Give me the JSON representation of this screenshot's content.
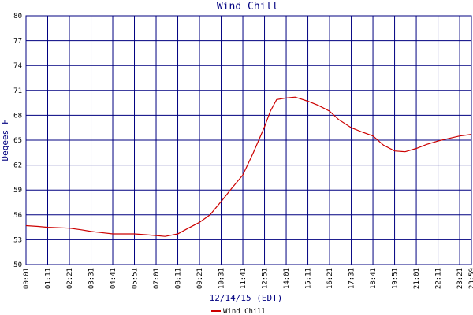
{
  "chart_data": {
    "type": "line",
    "title": "Wind Chill",
    "xlabel": "12/14/15 (EDT)",
    "ylabel": "Degees F",
    "x": [
      "00:01",
      "00:40",
      "01:11",
      "02:21",
      "03:00",
      "03:31",
      "04:41",
      "05:51",
      "06:30",
      "07:01",
      "07:30",
      "08:11",
      "08:45",
      "09:21",
      "09:55",
      "10:31",
      "11:05",
      "11:41",
      "12:15",
      "12:51",
      "13:10",
      "13:30",
      "14:01",
      "14:30",
      "15:11",
      "15:45",
      "16:21",
      "16:50",
      "17:31",
      "18:05",
      "18:41",
      "19:15",
      "19:51",
      "20:25",
      "21:01",
      "21:35",
      "22:11",
      "22:45",
      "23:21",
      "23:59"
    ],
    "series": [
      {
        "name": "Wind Chill",
        "color": "#cc0000",
        "values": [
          54.7,
          54.6,
          54.5,
          54.4,
          54.2,
          54.0,
          53.7,
          53.7,
          53.6,
          53.5,
          53.4,
          53.7,
          54.4,
          55.1,
          56.0,
          57.6,
          59.2,
          60.8,
          63.5,
          66.6,
          68.5,
          69.9,
          70.1,
          70.2,
          69.7,
          69.2,
          68.5,
          67.5,
          66.5,
          66.0,
          65.5,
          64.4,
          63.7,
          63.6,
          64.0,
          64.5,
          64.9,
          65.2,
          65.5,
          65.7
        ]
      }
    ],
    "xlim": [
      "00:01",
      "23:59"
    ],
    "xticks": [
      "00:01",
      "01:11",
      "02:21",
      "03:31",
      "04:41",
      "05:51",
      "07:01",
      "08:11",
      "09:21",
      "10:31",
      "11:41",
      "12:51",
      "14:01",
      "15:11",
      "16:21",
      "17:31",
      "18:41",
      "19:51",
      "21:01",
      "22:11",
      "23:21",
      "23:59"
    ],
    "ylim": [
      50,
      80
    ],
    "yticks": [
      50,
      53,
      56,
      59,
      62,
      65,
      68,
      71,
      74,
      77,
      80
    ],
    "grid": true,
    "grid_color": "#000080"
  }
}
